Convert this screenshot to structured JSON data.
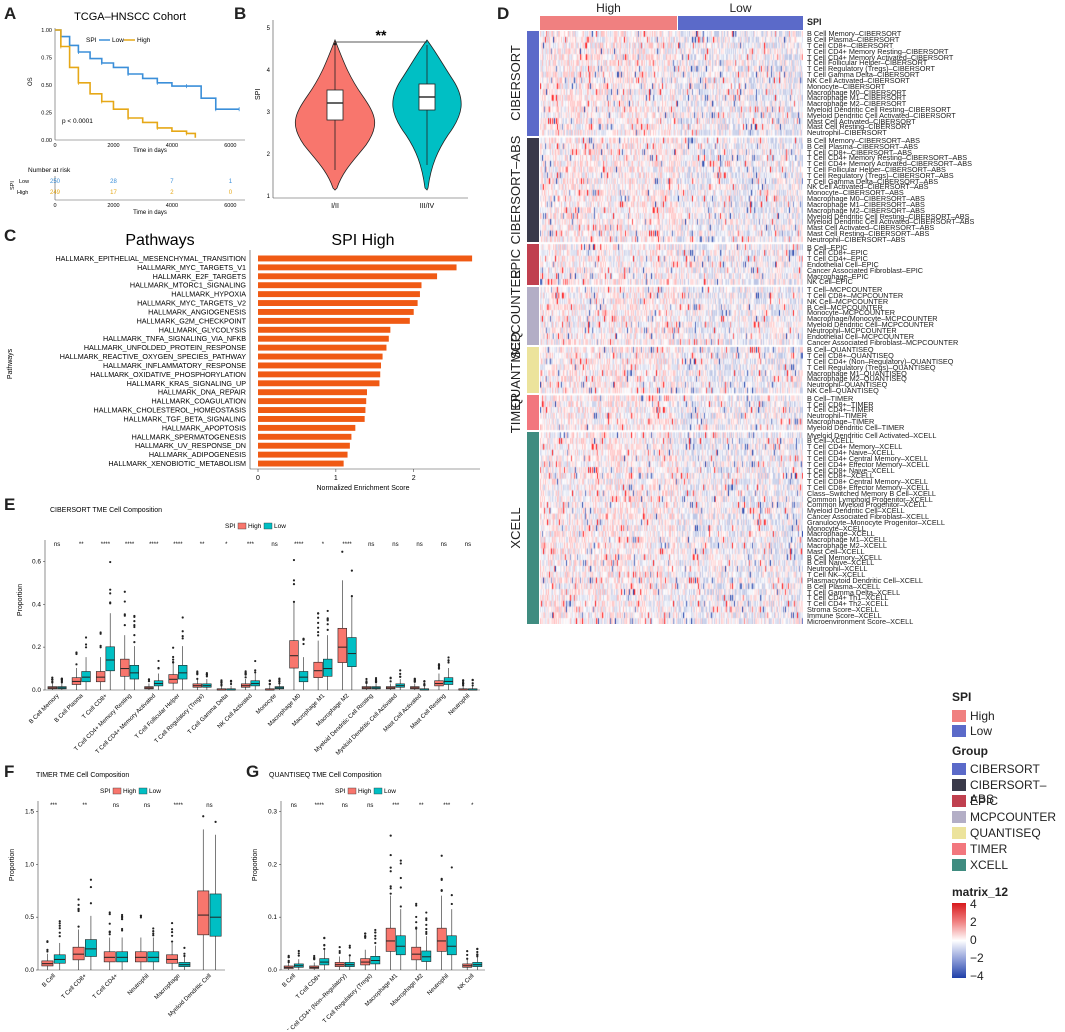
{
  "panels": {
    "A": "A",
    "B": "B",
    "C": "C",
    "D": "D",
    "E": "E",
    "F": "F",
    "G": "G"
  },
  "colors": {
    "low": "#3b8fd9",
    "high": "#e6a817",
    "spi_high": "#f08080",
    "spi_low": "#5b6ac9",
    "violet_red": "#f8766d",
    "violet_teal": "#00bfc4",
    "bar": "#f05a14",
    "box_high": "#f8766d",
    "box_low": "#00bfc4"
  },
  "panelA": {
    "title": "TCGA–HNSCC Cohort",
    "legend_title": "SPI",
    "legend_low": "Low",
    "legend_high": "High",
    "ylabel": "OS",
    "xlabel": "Time in days",
    "pvalue": "p < 0.0001",
    "yticks": [
      "1.00",
      "0.75",
      "0.50",
      "0.25",
      "0.00"
    ],
    "xticks": [
      "0",
      "2000",
      "4000",
      "6000"
    ],
    "risk_title": "Number at risk",
    "risk_ylabel": "SPI",
    "risk_low_label": "Low",
    "risk_high_label": "High",
    "risk_low": [
      "250",
      "28",
      "7",
      "1"
    ],
    "risk_high": [
      "249",
      "17",
      "2",
      "0"
    ]
  },
  "panelB": {
    "ylabel": "SPI",
    "sig": "**",
    "categories": [
      "I/II",
      "III/IV"
    ],
    "yticks": [
      "5",
      "4",
      "3",
      "2",
      "1"
    ]
  },
  "panelC": {
    "left_title": "Pathways",
    "right_title": "SPI High",
    "ylabel": "Pathways",
    "xlabel": "Normalized Enrichment Score",
    "xticks": [
      "0",
      "1",
      "2"
    ]
  },
  "panelD": {
    "col_high": "High",
    "col_low": "Low",
    "spi_label": "SPI",
    "legend": {
      "spi_title": "SPI",
      "spi_high": "High",
      "spi_low": "Low",
      "group_title": "Group",
      "groups": [
        "CIBERSORT",
        "CIBERSORT–ABS",
        "EPIC",
        "MCPCOUNTER",
        "QUANTISEQ",
        "TIMER",
        "XCELL"
      ],
      "group_colors": [
        "#5b6ac9",
        "#3a3a4a",
        "#c0404f",
        "#b3aec6",
        "#ece39c",
        "#f2777e",
        "#3f8c80"
      ],
      "matrix_title": "matrix_12",
      "matrix_ticks": [
        "4",
        "2",
        "0",
        "−2",
        "−4"
      ]
    },
    "groups": [
      {
        "name": "CIBERSORT",
        "rows": [
          "B Cell Memory–CIBERSORT",
          "B Cell Plasma–CIBERSORT",
          "T Cell CD8+–CIBERSORT",
          "T Cell CD4+ Memory Resting–CIBERSORT",
          "T Cell CD4+ Memory Activated–CIBERSORT",
          "T Cell Follicular Helper–CIBERSORT",
          "T Cell Regulatory (Tregs)–CIBERSORT",
          "T Cell Gamma Delta–CIBERSORT",
          "NK Cell Activated–CIBERSORT",
          "Monocyte–CIBERSORT",
          "Macrophage M0–CIBERSORT",
          "Macrophage M1–CIBERSORT",
          "Macrophage M2–CIBERSORT",
          "Myeloid Dendritic Cell Resting–CIBERSORT",
          "Myeloid Dendritic Cell Activated–CIBERSORT",
          "Mast Cell Activated–CIBERSORT",
          "Mast Cell Resting–CIBERSORT",
          "Neutrophil–CIBERSORT"
        ]
      },
      {
        "name": "CIBERSORT–ABS",
        "rows": [
          "B Cell Memory–CIBERSORT–ABS",
          "B Cell Plasma–CIBERSORT–ABS",
          "T Cell CD8+–CIBERSORT–ABS",
          "T Cell CD4+ Memory Resting–CIBERSORT–ABS",
          "T Cell CD4+ Memory Activated–CIBERSORT–ABS",
          "T Cell Follicular Helper–CIBERSORT–ABS",
          "T Cell Regulatory (Tregs)–CIBERSORT–ABS",
          "T Cell Gamma Delta–CIBERSORT–ABS",
          "NK Cell Activated–CIBERSORT–ABS",
          "Monocyte–CIBERSORT–ABS",
          "Macrophage M0–CIBERSORT–ABS",
          "Macrophage M1–CIBERSORT–ABS",
          "Macrophage M2–CIBERSORT–ABS",
          "Myeloid Dendritic Cell Resting–CIBERSORT–ABS",
          "Myeloid Dendritic Cell Activated–CIBERSORT–ABS",
          "Mast Cell Activated–CIBERSORT–ABS",
          "Mast Cell Resting–CIBERSORT–ABS",
          "Neutrophil–CIBERSORT–ABS"
        ]
      },
      {
        "name": "EPIC",
        "rows": [
          "B Cell–EPIC",
          "T Cell CD8+–EPIC",
          "T Cell CD4+–EPIC",
          "Endothelial Cell–EPIC",
          "Cancer Associated Fibroblast–EPIC",
          "Macrophage–EPIC",
          "NK Cell–EPIC"
        ]
      },
      {
        "name": "MCPCOUNTER",
        "rows": [
          "T Cell–MCPCOUNTER",
          "T Cell CD8+–MCPCOUNTER",
          "NK Cell–MCPCOUNTER",
          "B Cell–MCPCOUNTER",
          "Monocyte–MCPCOUNTER",
          "Macrophage/Monocyte–MCPCOUNTER",
          "Myeloid Dendritic Cell–MCPCOUNTER",
          "Neutrophil–MCPCOUNTER",
          "Endothelial Cell–MCPCOUNTER",
          "Cancer Associated Fibroblast–MCPCOUNTER"
        ]
      },
      {
        "name": "QUANTISEQ",
        "rows": [
          "B Cell–QUANTISEQ",
          "T Cell CD8+–QUANTISEQ",
          "T Cell CD4+ (Non–Regulatory)–QUANTISEQ",
          "T Cell Regulatory (Tregs)–QUANTISEQ",
          "Macrophage M1–QUANTISEQ",
          "Macrophage M2–QUANTISEQ",
          "Neutrophil–QUANTISEQ",
          "NK Cell–QUANTISEQ"
        ]
      },
      {
        "name": "TIMER",
        "rows": [
          "B Cell–TIMER",
          "T Cell CD8+–TIMER",
          "T Cell CD4+–TIMER",
          "Neutrophil–TIMER",
          "Macrophage–TIMER",
          "Myeloid Dendritic Cell–TIMER"
        ]
      },
      {
        "name": "XCELL",
        "rows": [
          "Myeloid Dendritic Cell Activated–XCELL",
          "B Cell–XCELL",
          "T Cell CD4+ Memory–XCELL",
          "T Cell CD4+ Naive–XCELL",
          "T Cell CD4+ Central Memory–XCELL",
          "T Cell CD4+ Effector Memory–XCELL",
          "T Cell CD8+ Naive–XCELL",
          "T Cell CD8+–XCELL",
          "T Cell CD8+ Central Memory–XCELL",
          "T Cell CD8+ Effector Memory–XCELL",
          "Class–Switched Memory B Cell–XCELL",
          "Common Lymphoid Progenitor–XCELL",
          "Common Myeloid Progenitor–XCELL",
          "Myeloid Dendritic Cell–XCELL",
          "Cancer Associated Fibroblast–XCELL",
          "Granulocyte–Monocyte Progenitor–XCELL",
          "Monocyte–XCELL",
          "Macrophage–XCELL",
          "Macrophage M1–XCELL",
          "Macrophage M2–XCELL",
          "Mast Cell–XCELL",
          "B Cell Memory–XCELL",
          "B Cell Naive–XCELL",
          "Neutrophil–XCELL",
          "T Cell NK–XCELL",
          "Plasmacytoid Dendritic Cell–XCELL",
          "B Cell Plasma–XCELL",
          "T Cell Gamma Delta–XCELL",
          "T Cell CD4+ Th1–XCELL",
          "T Cell CD4+ Th2–XCELL",
          "Stroma Score–XCELL",
          "Immune Score–XCELL",
          "Microenvironment Score–XCELL"
        ]
      }
    ]
  },
  "panelE": {
    "title": "CIBERSORT TME Cell Composition",
    "legend_title": "SPI",
    "legend_high": "High",
    "legend_low": "Low",
    "ylabel": "Proportion",
    "yticks": [
      "0.6",
      "0.4",
      "0.2",
      "0.0"
    ]
  },
  "panelF": {
    "title": "TIMER TME Cell Composition",
    "legend_title": "SPI",
    "legend_high": "High",
    "legend_low": "Low",
    "ylabel": "Proportion",
    "yticks": [
      "1.5",
      "1.0",
      "0.5",
      "0.0"
    ]
  },
  "panelG": {
    "title": "QUANTISEQ TME Cell Composition",
    "legend_title": "SPI",
    "legend_high": "High",
    "legend_low": "Low",
    "ylabel": "Proportion",
    "yticks": [
      "0.3",
      "0.2",
      "0.1",
      "0.0"
    ]
  },
  "chart_data": [
    {
      "type": "line",
      "title": "TCGA–HNSCC Cohort",
      "xlabel": "Time in days",
      "ylabel": "OS",
      "xlim": [
        0,
        6500
      ],
      "ylim": [
        0,
        1
      ],
      "series": [
        {
          "name": "Low",
          "x": [
            0,
            200,
            500,
            800,
            1200,
            1600,
            2000,
            2500,
            3000,
            3500,
            4000,
            4500,
            5000,
            5500,
            6000,
            6300
          ],
          "y": [
            1,
            0.94,
            0.86,
            0.8,
            0.74,
            0.7,
            0.66,
            0.6,
            0.56,
            0.52,
            0.49,
            0.49,
            0.38,
            0.28,
            0.28,
            0.28
          ]
        },
        {
          "name": "High",
          "x": [
            0,
            200,
            500,
            800,
            1200,
            1600,
            2000,
            2500,
            3000,
            3500,
            4000,
            4500,
            4800
          ],
          "y": [
            1,
            0.85,
            0.66,
            0.52,
            0.42,
            0.35,
            0.28,
            0.2,
            0.16,
            0.11,
            0.08,
            0.06,
            0.02
          ]
        }
      ]
    },
    {
      "type": "bar",
      "title": "SPI High",
      "xlabel": "Normalized Enrichment Score",
      "ylabel": "Pathways",
      "xlim": [
        0,
        2.8
      ],
      "categories": [
        "HALLMARK_EPITHELIAL_MESENCHYMAL_TRANSITION",
        "HALLMARK_MYC_TARGETS_V1",
        "HALLMARK_E2F_TARGETS",
        "HALLMARK_MTORC1_SIGNALING",
        "HALLMARK_HYPOXIA",
        "HALLMARK_MYC_TARGETS_V2",
        "HALLMARK_ANGIOGENESIS",
        "HALLMARK_G2M_CHECKPOINT",
        "HALLMARK_GLYCOLYSIS",
        "HALLMARK_TNFA_SIGNALING_VIA_NFKB",
        "HALLMARK_UNFOLDED_PROTEIN_RESPONSE",
        "HALLMARK_REACTIVE_OXYGEN_SPECIES_PATHWAY",
        "HALLMARK_INFLAMMATORY_RESPONSE",
        "HALLMARK_OXIDATIVE_PHOSPHORYLATION",
        "HALLMARK_KRAS_SIGNALING_UP",
        "HALLMARK_DNA_REPAIR",
        "HALLMARK_COAGULATION",
        "HALLMARK_CHOLESTEROL_HOMEOSTASIS",
        "HALLMARK_TGF_BETA_SIGNALING",
        "HALLMARK_APOPTOSIS",
        "HALLMARK_SPERMATOGENESIS",
        "HALLMARK_UV_RESPONSE_DN",
        "HALLMARK_ADIPOGENESIS",
        "HALLMARK_XENOBIOTIC_METABOLISM"
      ],
      "values": [
        2.75,
        2.55,
        2.3,
        2.1,
        2.08,
        2.05,
        2.0,
        1.95,
        1.7,
        1.68,
        1.65,
        1.6,
        1.58,
        1.57,
        1.56,
        1.4,
        1.39,
        1.38,
        1.37,
        1.25,
        1.2,
        1.18,
        1.15,
        1.1
      ]
    },
    {
      "type": "box",
      "title": "CIBERSORT TME Cell Composition",
      "ylabel": "Proportion",
      "ylim": [
        0,
        0.7
      ],
      "categories": [
        "B Cell Memory",
        "B Cell Plasma",
        "T Cell CD8+",
        "T Cell CD4+ Memory Resting",
        "T Cell CD4+ Memory Activated",
        "T Cell Follicular Helper",
        "T Cell Regulatory (Tregs)",
        "T Cell Gamma Delta",
        "NK Cell Activated",
        "Monocyte",
        "Macrophage M0",
        "Macrophage M1",
        "Macrophage M2",
        "Myeloid Dendritic Cell Resting",
        "Myeloid Dendritic Cell Activated",
        "Mast Cell Activated",
        "Mast Cell Resting",
        "Neutrophil"
      ],
      "significance": [
        "ns",
        "**",
        "****",
        "****",
        "****",
        "****",
        "**",
        "*",
        "***",
        "ns",
        "****",
        "*",
        "****",
        "ns",
        "ns",
        "ns",
        "ns",
        "ns"
      ],
      "high_median": [
        0.01,
        0.04,
        0.06,
        0.1,
        0.01,
        0.05,
        0.02,
        0.0,
        0.02,
        0.0,
        0.16,
        0.09,
        0.2,
        0.01,
        0.01,
        0.01,
        0.03,
        0.0
      ],
      "low_median": [
        0.01,
        0.06,
        0.14,
        0.08,
        0.03,
        0.08,
        0.02,
        0.0,
        0.03,
        0.01,
        0.06,
        0.1,
        0.17,
        0.01,
        0.02,
        0.0,
        0.04,
        0.0
      ]
    },
    {
      "type": "box",
      "title": "TIMER TME Cell Composition",
      "ylabel": "Proportion",
      "ylim": [
        0,
        1.6
      ],
      "categories": [
        "B Cell",
        "T Cell CD8+",
        "T Cell CD4+",
        "Neutrophil",
        "Macrophage",
        "Myeloid Dendritic Cell"
      ],
      "significance": [
        "***",
        "**",
        "ns",
        "ns",
        "****",
        "ns"
      ],
      "high_median": [
        0.06,
        0.15,
        0.12,
        0.12,
        0.1,
        0.52
      ],
      "low_median": [
        0.1,
        0.2,
        0.12,
        0.12,
        0.05,
        0.5
      ]
    },
    {
      "type": "box",
      "title": "QUANTISEQ TME Cell Composition",
      "ylabel": "Proportion",
      "ylim": [
        0,
        0.32
      ],
      "categories": [
        "B Cell",
        "T Cell CD8+",
        "T Cell CD4+ (Non–Regulatory)",
        "T Cell Regulatory (Tregs)",
        "Macrophage M1",
        "Macrophage M2",
        "Neutrophil",
        "NK Cell"
      ],
      "significance": [
        "ns",
        "****",
        "ns",
        "ns",
        "***",
        "**",
        "***",
        "*"
      ],
      "high_median": [
        0.005,
        0.005,
        0.01,
        0.015,
        0.055,
        0.03,
        0.055,
        0.008
      ],
      "low_median": [
        0.008,
        0.015,
        0.01,
        0.018,
        0.045,
        0.025,
        0.045,
        0.01
      ]
    }
  ]
}
